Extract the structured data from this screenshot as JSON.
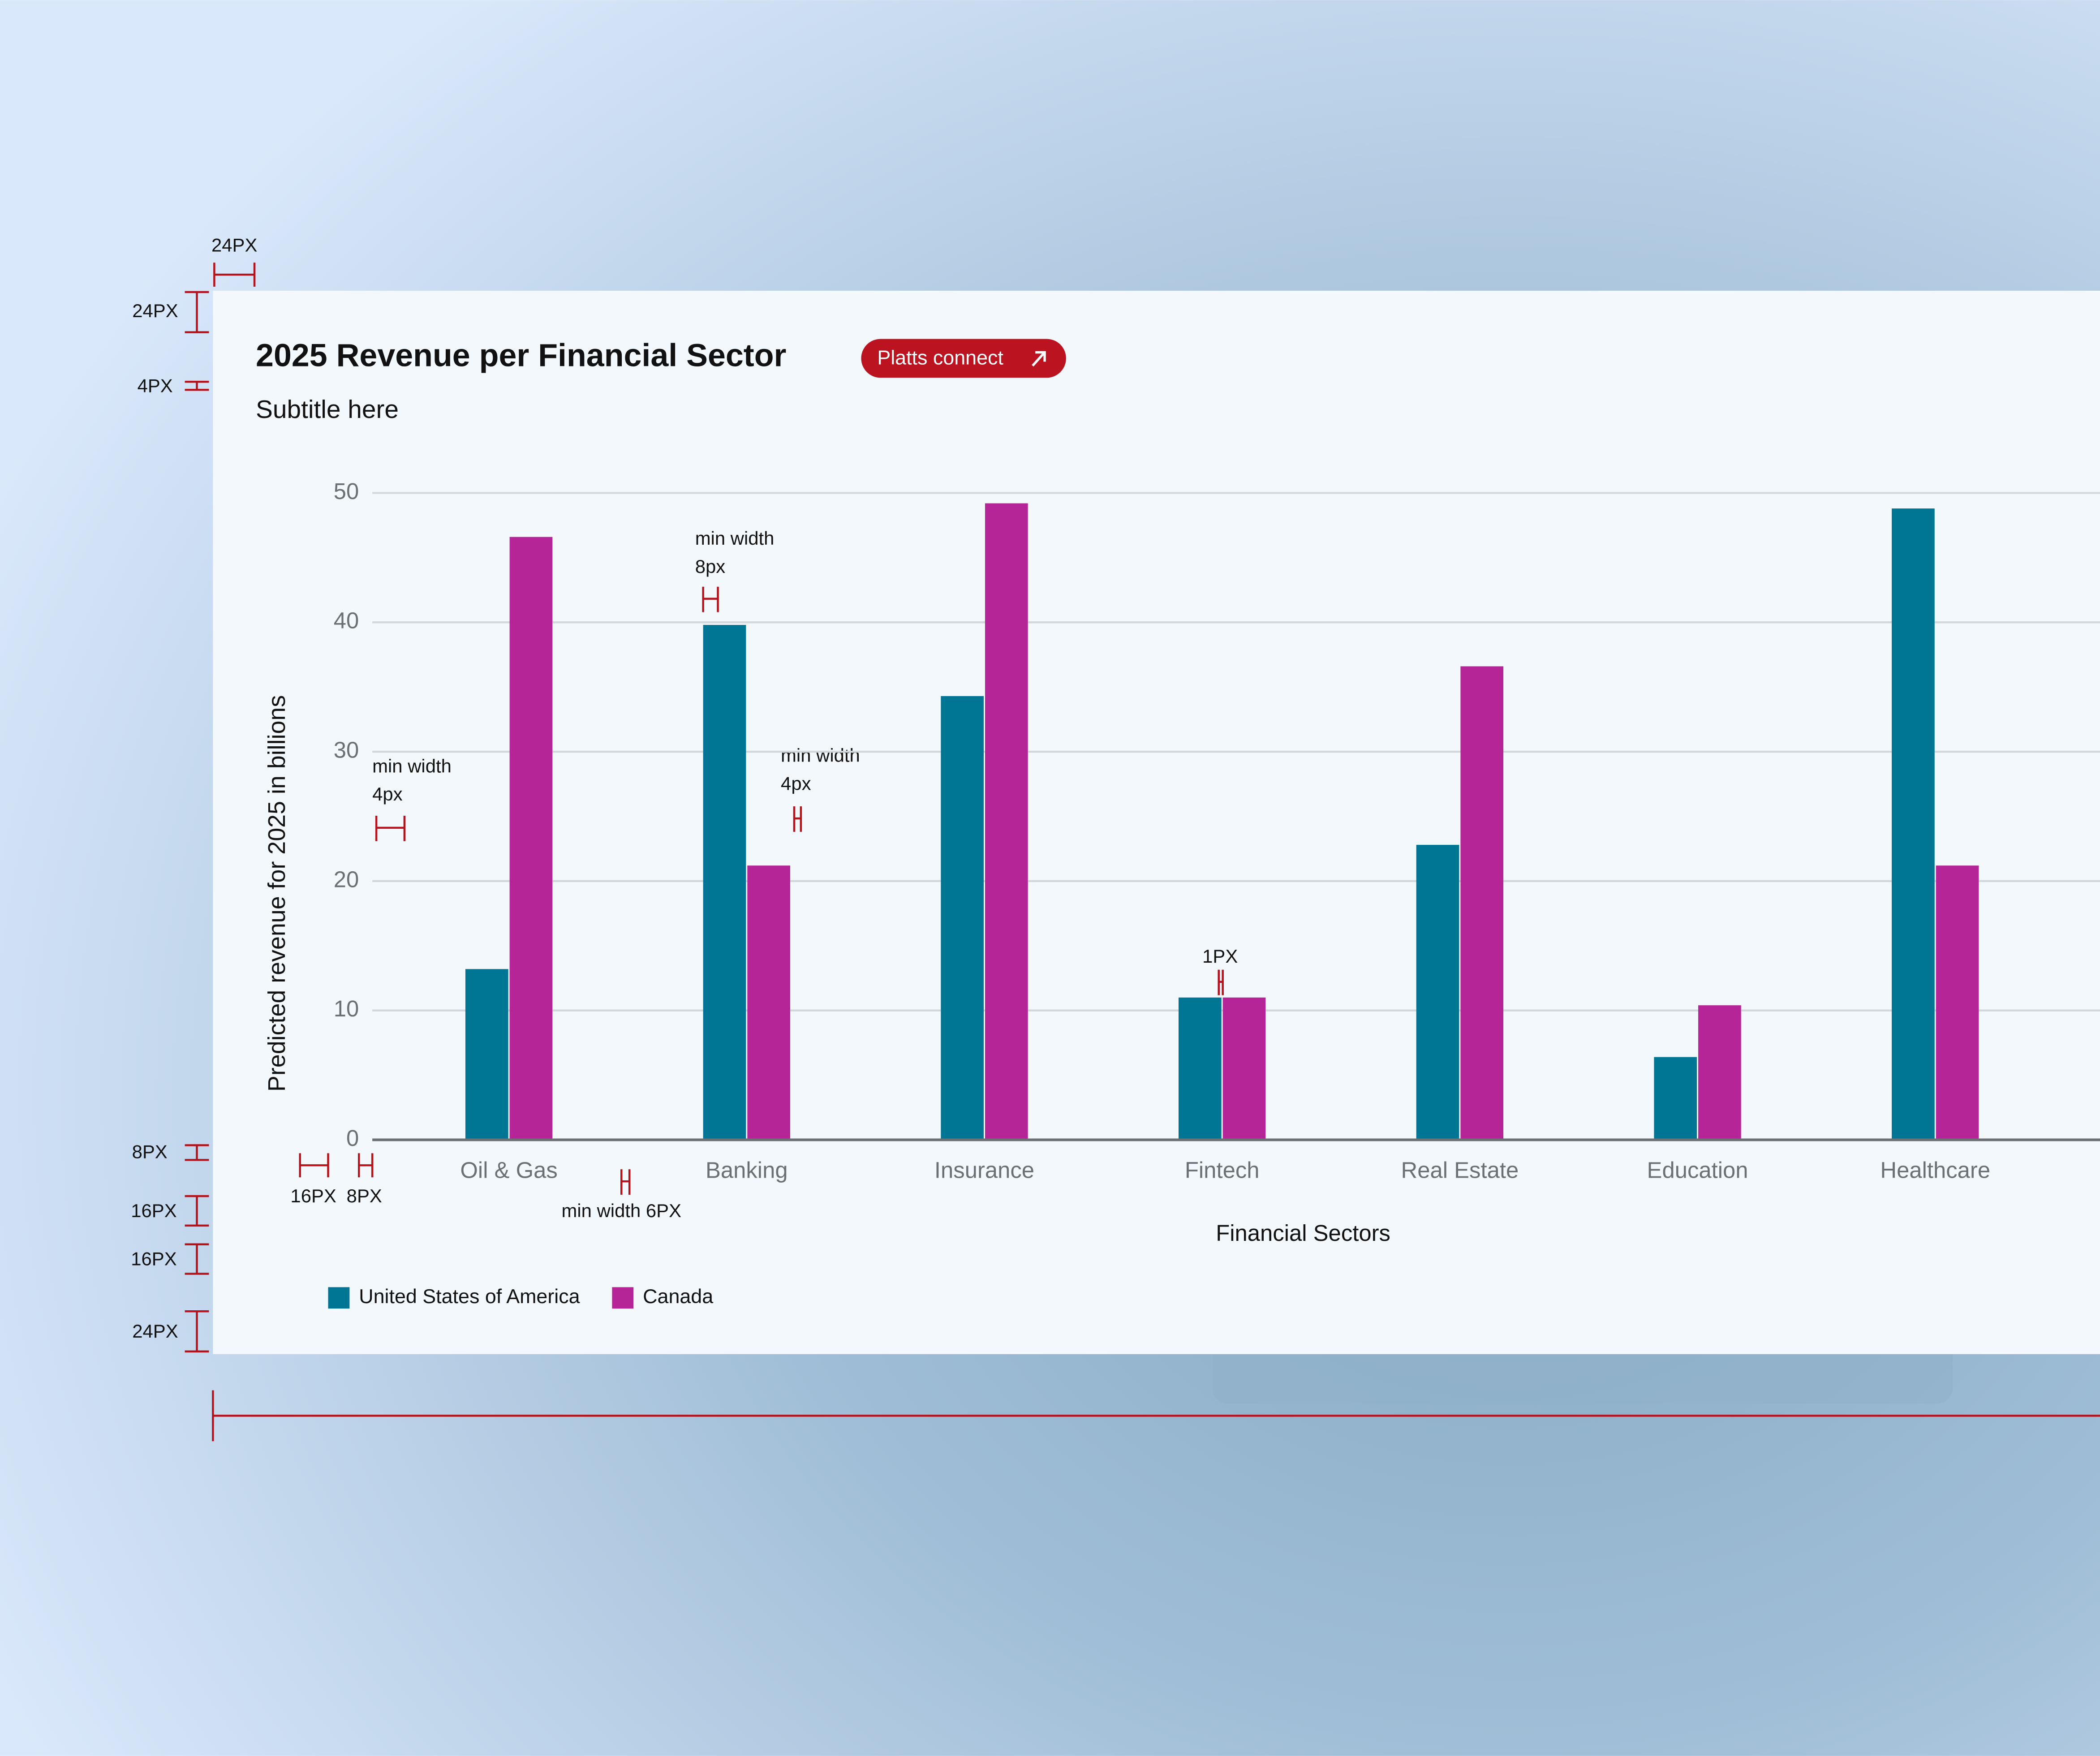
{
  "chart_data": {
    "type": "bar",
    "title": "2025 Revenue per Financial Sector",
    "subtitle": "Subtitle here",
    "button": "Platts connect",
    "x_label": "Financial Sectors",
    "y_label": "Predicted revenue for 2025 in billions",
    "categories": [
      "Oil & Gas",
      "Banking",
      "Insurance",
      "Fintech",
      "Real Estate",
      "Education",
      "Healthcare"
    ],
    "series": [
      {
        "name": "United States of America",
        "color": "#007694",
        "values": [
          13.2,
          39.8,
          34.3,
          11.0,
          22.8,
          6.4,
          48.8
        ]
      },
      {
        "name": "Canada",
        "color": "#b52598",
        "values": [
          46.6,
          21.2,
          49.2,
          11.0,
          36.6,
          10.4,
          21.2
        ]
      }
    ],
    "ylim": [
      0,
      50
    ],
    "yticks": [
      0,
      10,
      20,
      30,
      40,
      50
    ],
    "grid": true,
    "legend": "bottom-left",
    "annotations": [
      "24PX",
      "24PX",
      "4PX",
      "min width",
      "4px",
      "min width",
      "8px",
      "min width",
      "4px",
      "1PX",
      "8PX",
      "16PX",
      "8PX",
      "min width 6PX",
      "16PX",
      "16PX",
      "24PX"
    ]
  }
}
